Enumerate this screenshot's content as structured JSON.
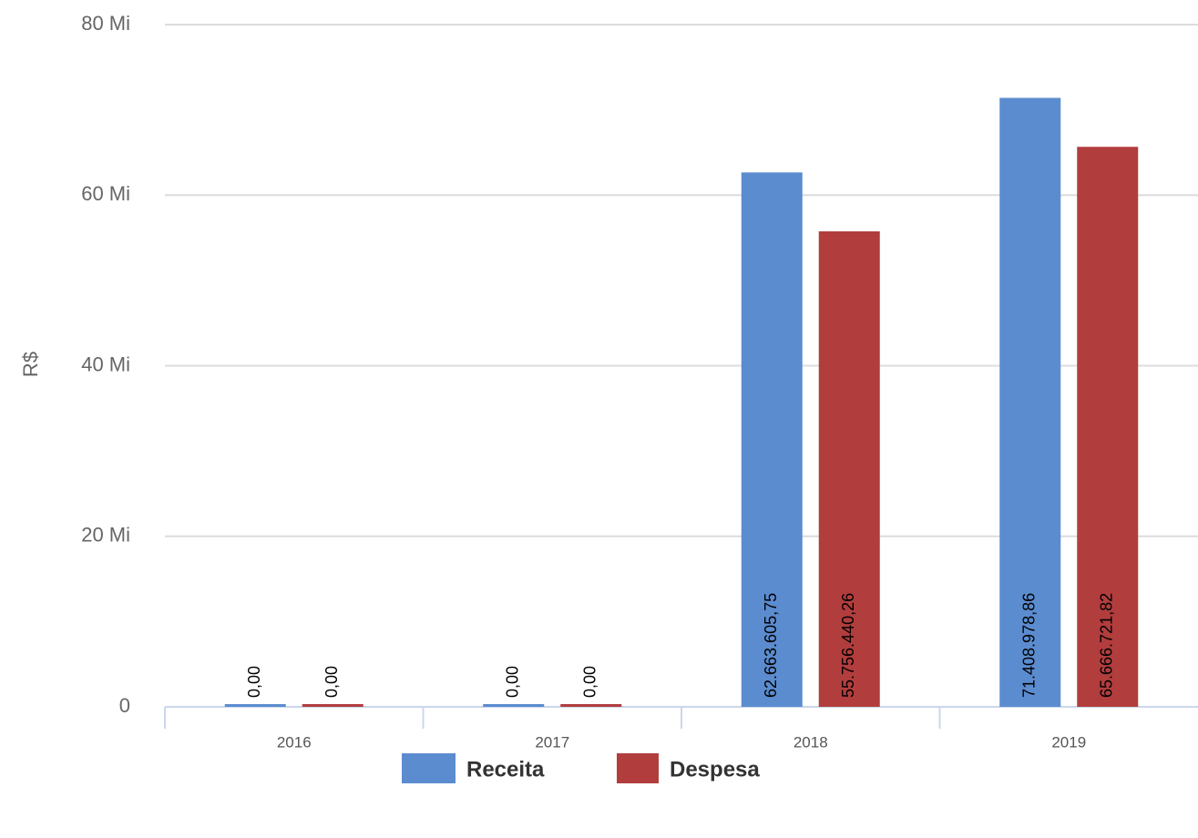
{
  "chart_data": {
    "type": "bar",
    "y_axis_label": "R$",
    "categories": [
      "2016",
      "2017",
      "2018",
      "2019"
    ],
    "series": [
      {
        "name": "Receita",
        "color": "#5b8ccf",
        "values": [
          0,
          0,
          62663605.75,
          71408978.86
        ],
        "value_labels": [
          "0,00",
          "0,00",
          "62.663.605,75",
          "71.408.978,86"
        ]
      },
      {
        "name": "Despesa",
        "color": "#b23d3d",
        "values": [
          0,
          0,
          55756440.26,
          65666721.82
        ],
        "value_labels": [
          "0,00",
          "0,00",
          "55.756.440,26",
          "65.666.721,82"
        ]
      }
    ],
    "ylim": [
      0,
      80000000
    ],
    "yticks": [
      0,
      {
        "value": 20000000,
        "label": "20 Mi"
      },
      {
        "value": 40000000,
        "label": "40 Mi"
      },
      {
        "value": 60000000,
        "label": "60 Mi"
      },
      {
        "value": 80000000,
        "label": "80 Mi"
      }
    ],
    "grid": true
  }
}
